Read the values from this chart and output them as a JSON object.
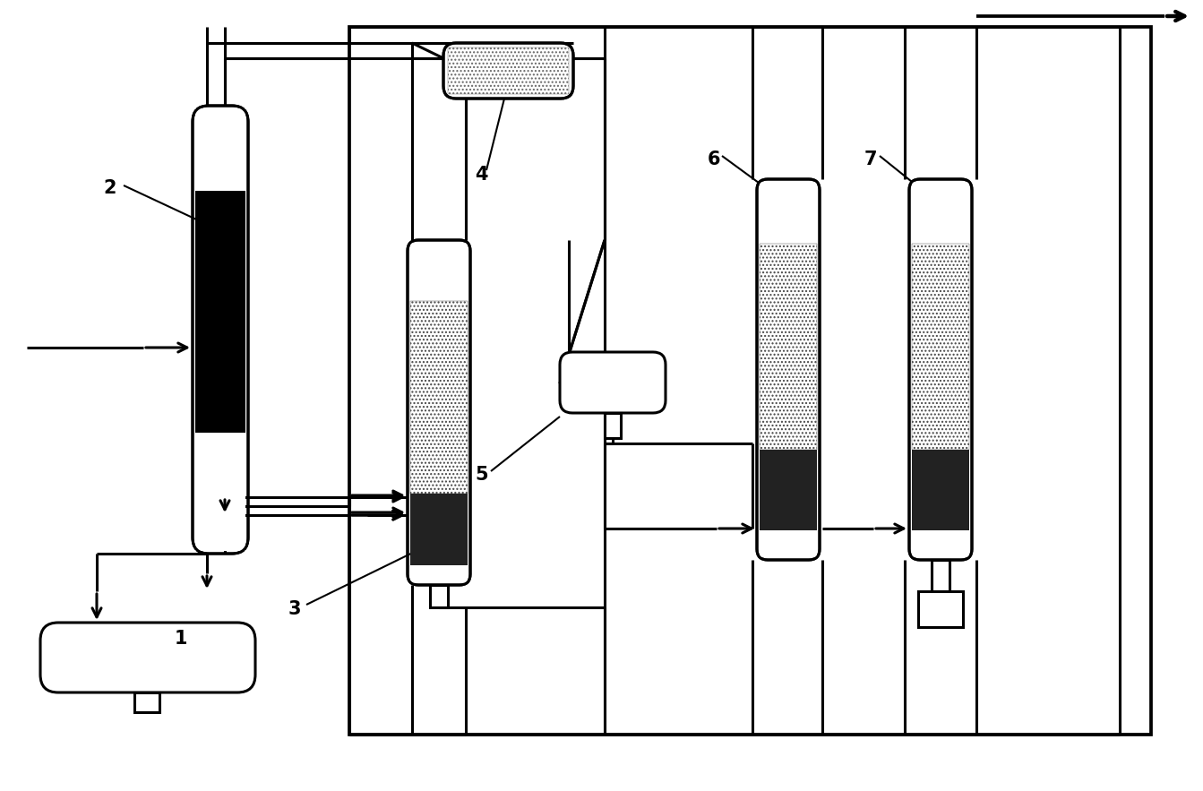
{
  "fig_width": 13.43,
  "fig_height": 8.83,
  "bg_color": "#ffffff",
  "lw": 2.2,
  "label_fontsize": 15
}
